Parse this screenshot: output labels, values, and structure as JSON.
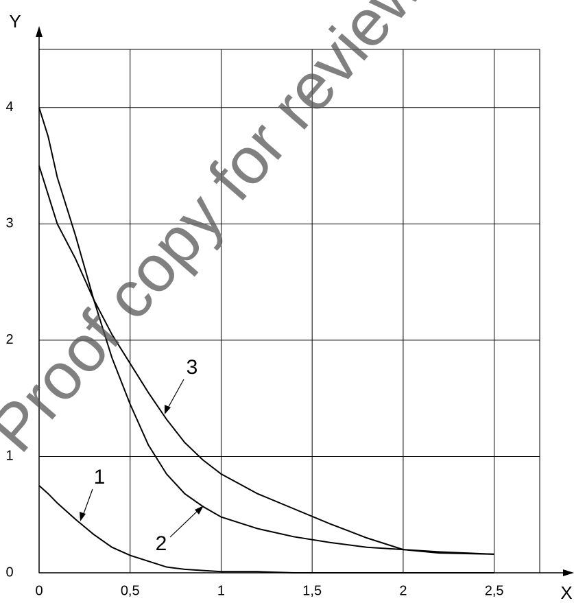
{
  "chart_data": {
    "type": "line",
    "xlabel": "X",
    "ylabel": "Y",
    "watermark": "Proof copy for review only",
    "x": [
      0,
      0.05,
      0.1,
      0.2,
      0.3,
      0.4,
      0.5,
      0.6,
      0.7,
      0.8,
      0.9,
      1.0,
      1.2,
      1.4,
      1.6,
      1.8,
      2.0,
      2.2,
      2.5
    ],
    "series": [
      {
        "name": "1",
        "color": "#000000",
        "values": [
          0.75,
          0.68,
          0.6,
          0.46,
          0.33,
          0.22,
          0.15,
          0.1,
          0.05,
          0.03,
          0.02,
          0.01,
          0.01,
          0,
          0,
          0,
          0,
          0,
          0
        ]
      },
      {
        "name": "2",
        "color": "#000000",
        "values": [
          4,
          3.75,
          3.4,
          2.9,
          2.35,
          1.85,
          1.45,
          1.1,
          0.85,
          0.68,
          0.57,
          0.48,
          0.38,
          0.31,
          0.26,
          0.22,
          0.2,
          0.18,
          0.16
        ]
      },
      {
        "name": "3",
        "color": "#000000",
        "values": [
          3.5,
          3.25,
          3.0,
          2.7,
          2.35,
          2.05,
          1.8,
          1.55,
          1.32,
          1.12,
          0.97,
          0.85,
          0.68,
          0.55,
          0.42,
          0.3,
          0.2,
          0.17,
          0.16
        ]
      }
    ],
    "xlim": [
      0,
      2.75
    ],
    "ylim": [
      0,
      4.5
    ],
    "xticks": [
      0,
      {
        "value": 0.5,
        "label": "0,5"
      },
      1,
      {
        "value": 1.5,
        "label": "1,5"
      },
      2,
      {
        "value": 2.5,
        "label": "2,5"
      }
    ],
    "yticks": [
      0,
      1,
      2,
      3,
      4
    ],
    "grid": true
  }
}
